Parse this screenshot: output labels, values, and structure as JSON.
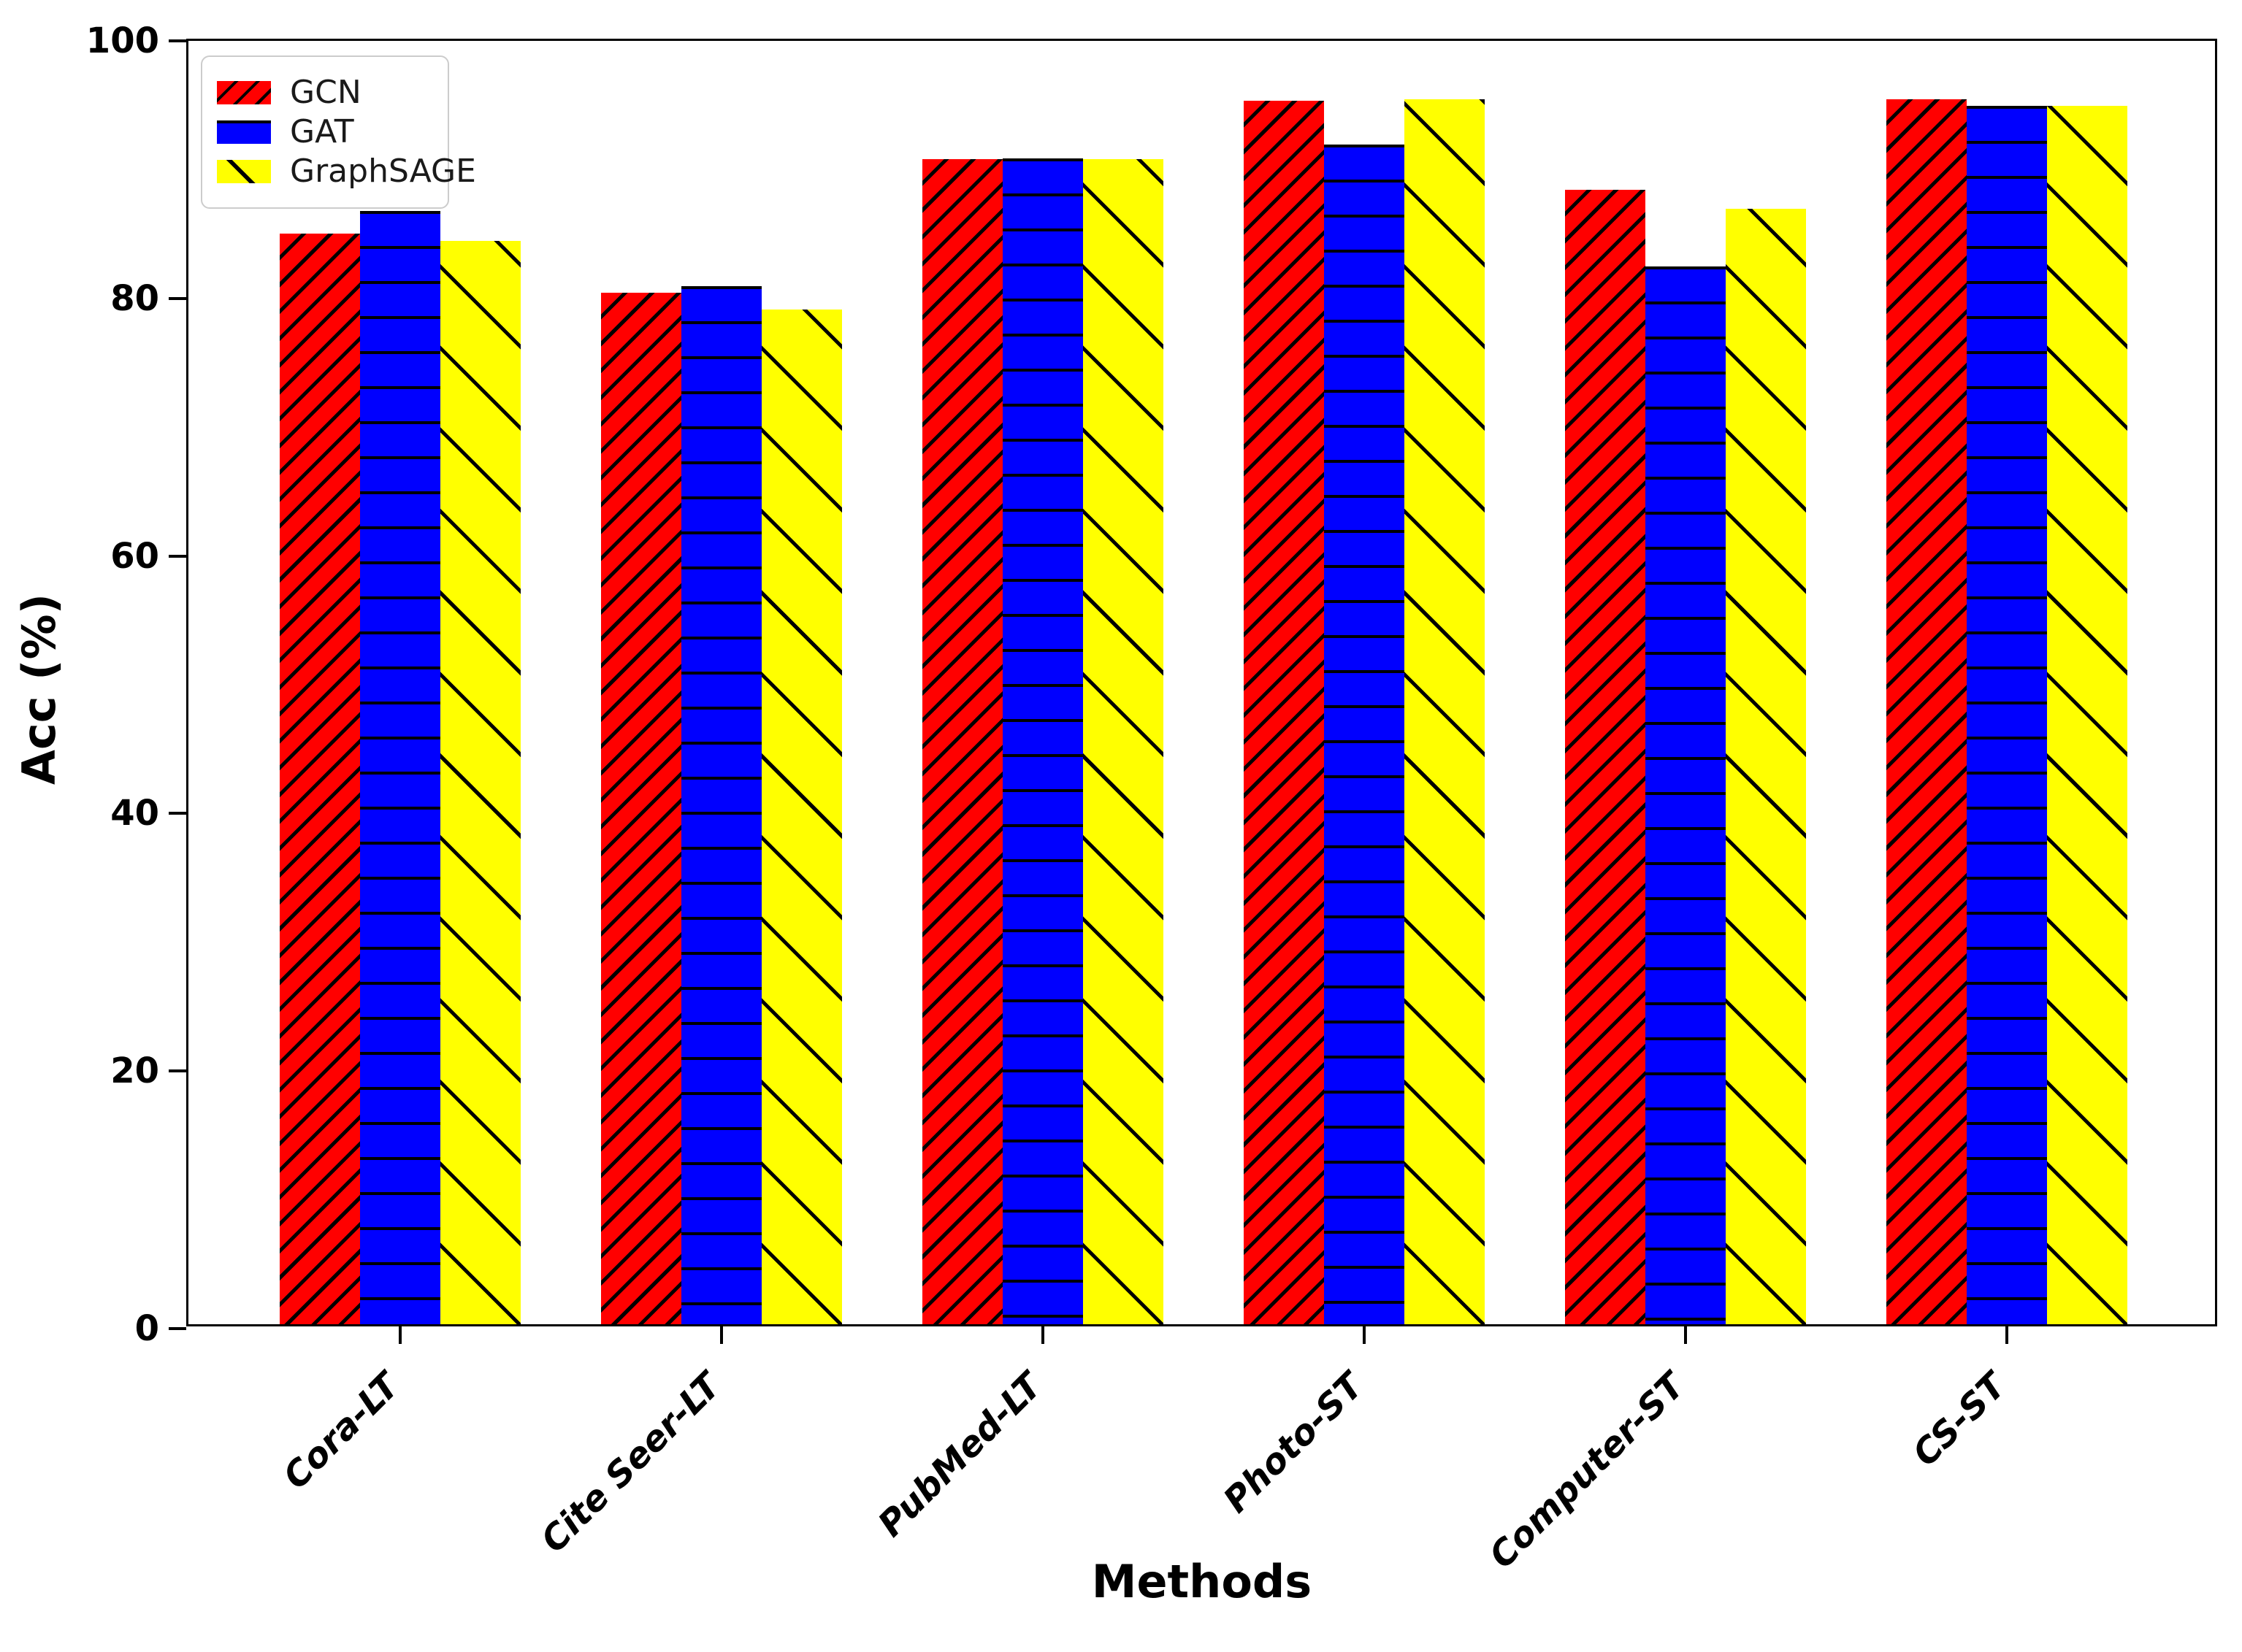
{
  "chart_data": {
    "type": "bar",
    "title": "",
    "xlabel": "Methods",
    "ylabel": "Acc (%)",
    "ylim": [
      0,
      100
    ],
    "yticks": [
      0,
      20,
      40,
      60,
      80,
      100
    ],
    "grid": false,
    "legend_position": "upper-left",
    "categories": [
      "Cora-LT",
      "Cite Seer-LT",
      "PubMed-LT",
      "Photo-ST",
      "Computer-ST",
      "CS-ST"
    ],
    "series": [
      {
        "name": "GCN",
        "color": "#ff0000",
        "hatch": "/",
        "values": [
          84.7,
          80.1,
          90.5,
          95.0,
          88.1,
          95.1
        ]
      },
      {
        "name": "GAT",
        "color": "#0000ff",
        "hatch": "-",
        "values": [
          86.2,
          80.4,
          90.3,
          91.4,
          81.9,
          94.4
        ]
      },
      {
        "name": "GraphSAGE",
        "color": "#ffff00",
        "hatch": "\\",
        "values": [
          84.1,
          78.8,
          90.5,
          95.1,
          86.6,
          94.6
        ]
      }
    ],
    "hatch_color": "#000000",
    "axis_color": "#000000",
    "background_color": "#ffffff"
  }
}
